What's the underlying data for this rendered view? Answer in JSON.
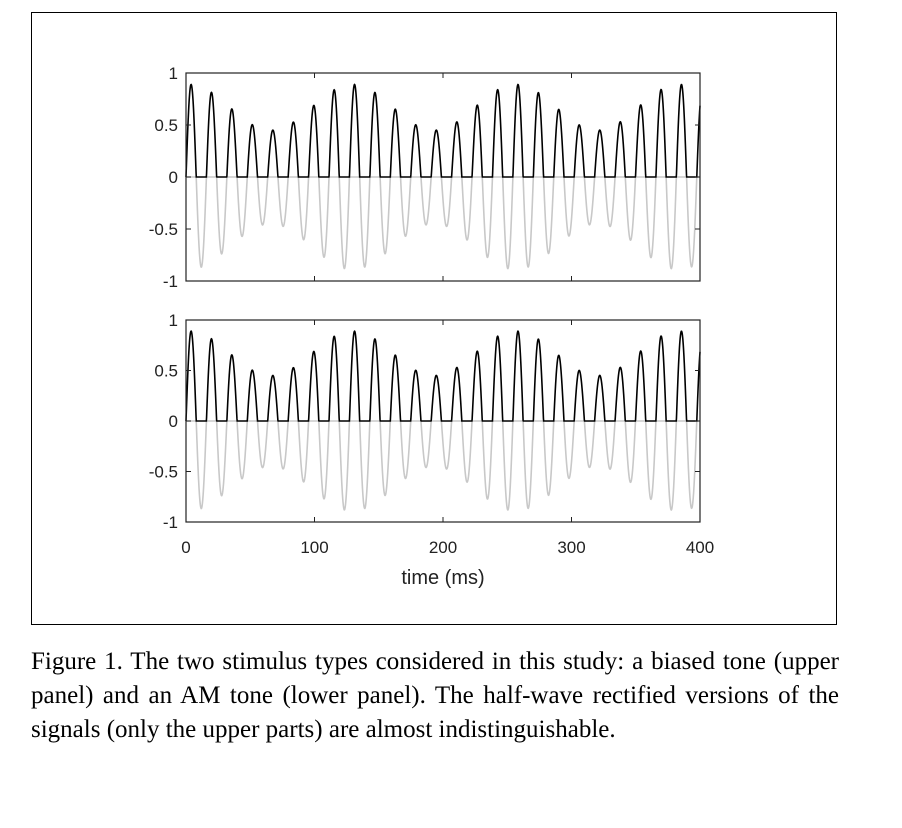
{
  "chart_data": [
    {
      "type": "line",
      "panel": "upper",
      "xlim": [
        0,
        400
      ],
      "ylim": [
        -1,
        1
      ],
      "yticks": [
        -1,
        -0.5,
        0,
        0.5,
        1
      ],
      "ytick_labels": [
        "-1",
        "-0.5",
        "0",
        "0.5",
        "1"
      ],
      "xticks": [
        0,
        100,
        200,
        300,
        400
      ],
      "xtick_labels": [],
      "xlabel": "",
      "ylabel": "",
      "grid": false,
      "series": [
        {
          "color": "#000000",
          "values": "positive half-wave: y = max(s(t), 0)"
        },
        {
          "color": "#c8c8c8",
          "values": "negative half-wave: y = min(s(t), 0)"
        }
      ],
      "signal": {
        "kind": "biased tone",
        "carrier_period_ms": 15.9,
        "modulation_period_ms": 127,
        "envelope_min": 0.45,
        "envelope_max": 0.89
      }
    },
    {
      "type": "line",
      "panel": "lower",
      "xlim": [
        0,
        400
      ],
      "ylim": [
        -1,
        1
      ],
      "yticks": [
        -1,
        -0.5,
        0,
        0.5,
        1
      ],
      "ytick_labels": [
        "-1",
        "-0.5",
        "0",
        "0.5",
        "1"
      ],
      "xticks": [
        0,
        100,
        200,
        300,
        400
      ],
      "xtick_labels": [
        "0",
        "100",
        "200",
        "300",
        "400"
      ],
      "xlabel": "time (ms)",
      "ylabel": "",
      "grid": false,
      "series": [
        {
          "color": "#000000",
          "values": "positive half-wave: y = max(s(t), 0)"
        },
        {
          "color": "#c8c8c8",
          "values": "negative half-wave: y = min(s(t), 0)"
        }
      ],
      "signal": {
        "kind": "AM tone",
        "carrier_period_ms": 15.9,
        "modulation_period_ms": 127,
        "envelope_min": 0.45,
        "envelope_max": 0.89
      }
    }
  ],
  "caption": "Figure 1. The two stimulus types considered in this study: a biased tone (upper panel) and an AM tone (lower panel). The half-wave rectified versions of the signals (only the upper parts) are almost indistinguishable."
}
